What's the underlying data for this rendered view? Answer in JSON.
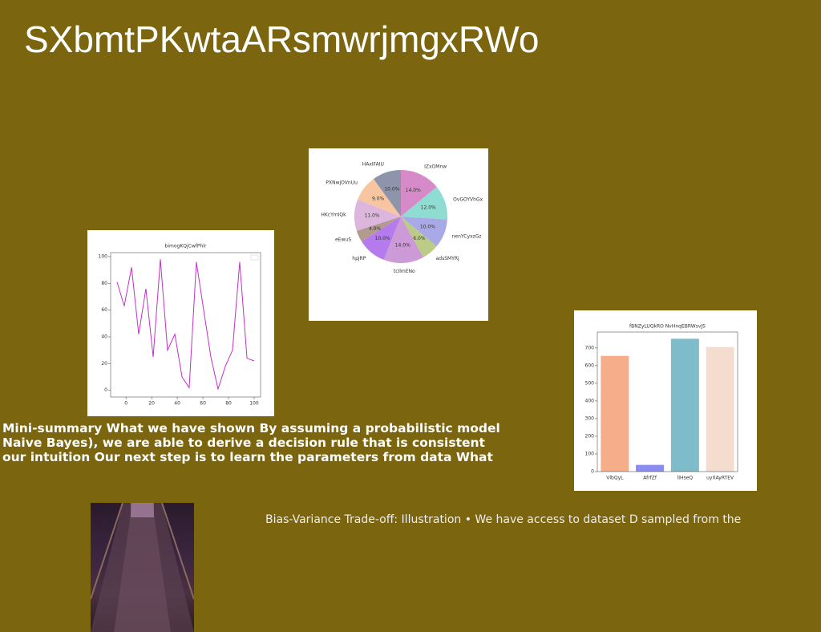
{
  "title": "SXbmtPKwtaARsmwrjmgxRWo",
  "summary": {
    "lines": [
      "Mini-summary What we have shown By assuming a probabilistic model",
      "Naive Bayes), we are able to derive a decision rule that is consistent",
      "our intuition Our next step is to learn the parameters from data What"
    ]
  },
  "caption": "Bias-Variance Trade-off: Illustration • We have access to dataset D sampled from the",
  "chart_data": [
    {
      "type": "line",
      "title": "bimogKQjCwfPhlr",
      "color": "#c231c8",
      "x": [
        -7,
        -1.4,
        4.3,
        9.9,
        15.5,
        21.2,
        26.8,
        32.4,
        38.1,
        43.7,
        49.3,
        54.9,
        60.6,
        66.2,
        71.8,
        77.5,
        83.1,
        88.7,
        94.4,
        100
      ],
      "values": [
        81,
        63,
        92,
        42,
        76,
        25,
        98,
        30,
        42,
        10,
        2,
        96,
        60,
        25,
        1,
        18,
        30,
        96,
        24,
        22
      ],
      "xlim": [
        -12,
        105
      ],
      "ylim": [
        -5,
        103
      ],
      "xticks": [
        0,
        20,
        40,
        60,
        80,
        100
      ],
      "yticks": [
        0,
        20,
        40,
        60,
        80,
        100
      ]
    },
    {
      "type": "pie",
      "categories": [
        "IZxOMnw",
        "OvGOYVhGx",
        "nenYCyxzGz",
        "adsSMYRj",
        "tcIlmENo",
        "hpjRP",
        "eEwuS",
        "HKcYmIQk",
        "PXNwjOVnUu",
        "HAxIFAIU"
      ],
      "values": [
        14,
        12,
        10,
        6,
        14,
        10,
        4,
        11,
        9,
        10
      ],
      "value_labels": [
        "14.0%",
        "12.0%",
        "10.0%",
        "6.0%",
        "14.0%",
        "10.0%",
        "4.0%",
        "11.0%",
        "9.0%",
        "10.0%"
      ],
      "colors": [
        "#d68bc8",
        "#8fdcd2",
        "#a9a9e8",
        "#bccb86",
        "#cc9ad6",
        "#b57bee",
        "#b39a8f",
        "#ddb6de",
        "#f7c6a1",
        "#8e94a9"
      ]
    },
    {
      "type": "bar",
      "title": "fBNZyLUQkRO NvHnqEBRWsvJS",
      "categories": [
        "VlbQyL",
        "AfrfZf",
        "lIHseQ",
        "uyXAyRTEV"
      ],
      "values": [
        655,
        38,
        752,
        705
      ],
      "colors": [
        "#f5ad8a",
        "#8c8cf0",
        "#7fbccb",
        "#f4dccf"
      ],
      "ylim": [
        0,
        790
      ],
      "yticks": [
        0,
        100,
        200,
        300,
        400,
        500,
        600,
        700
      ]
    }
  ]
}
